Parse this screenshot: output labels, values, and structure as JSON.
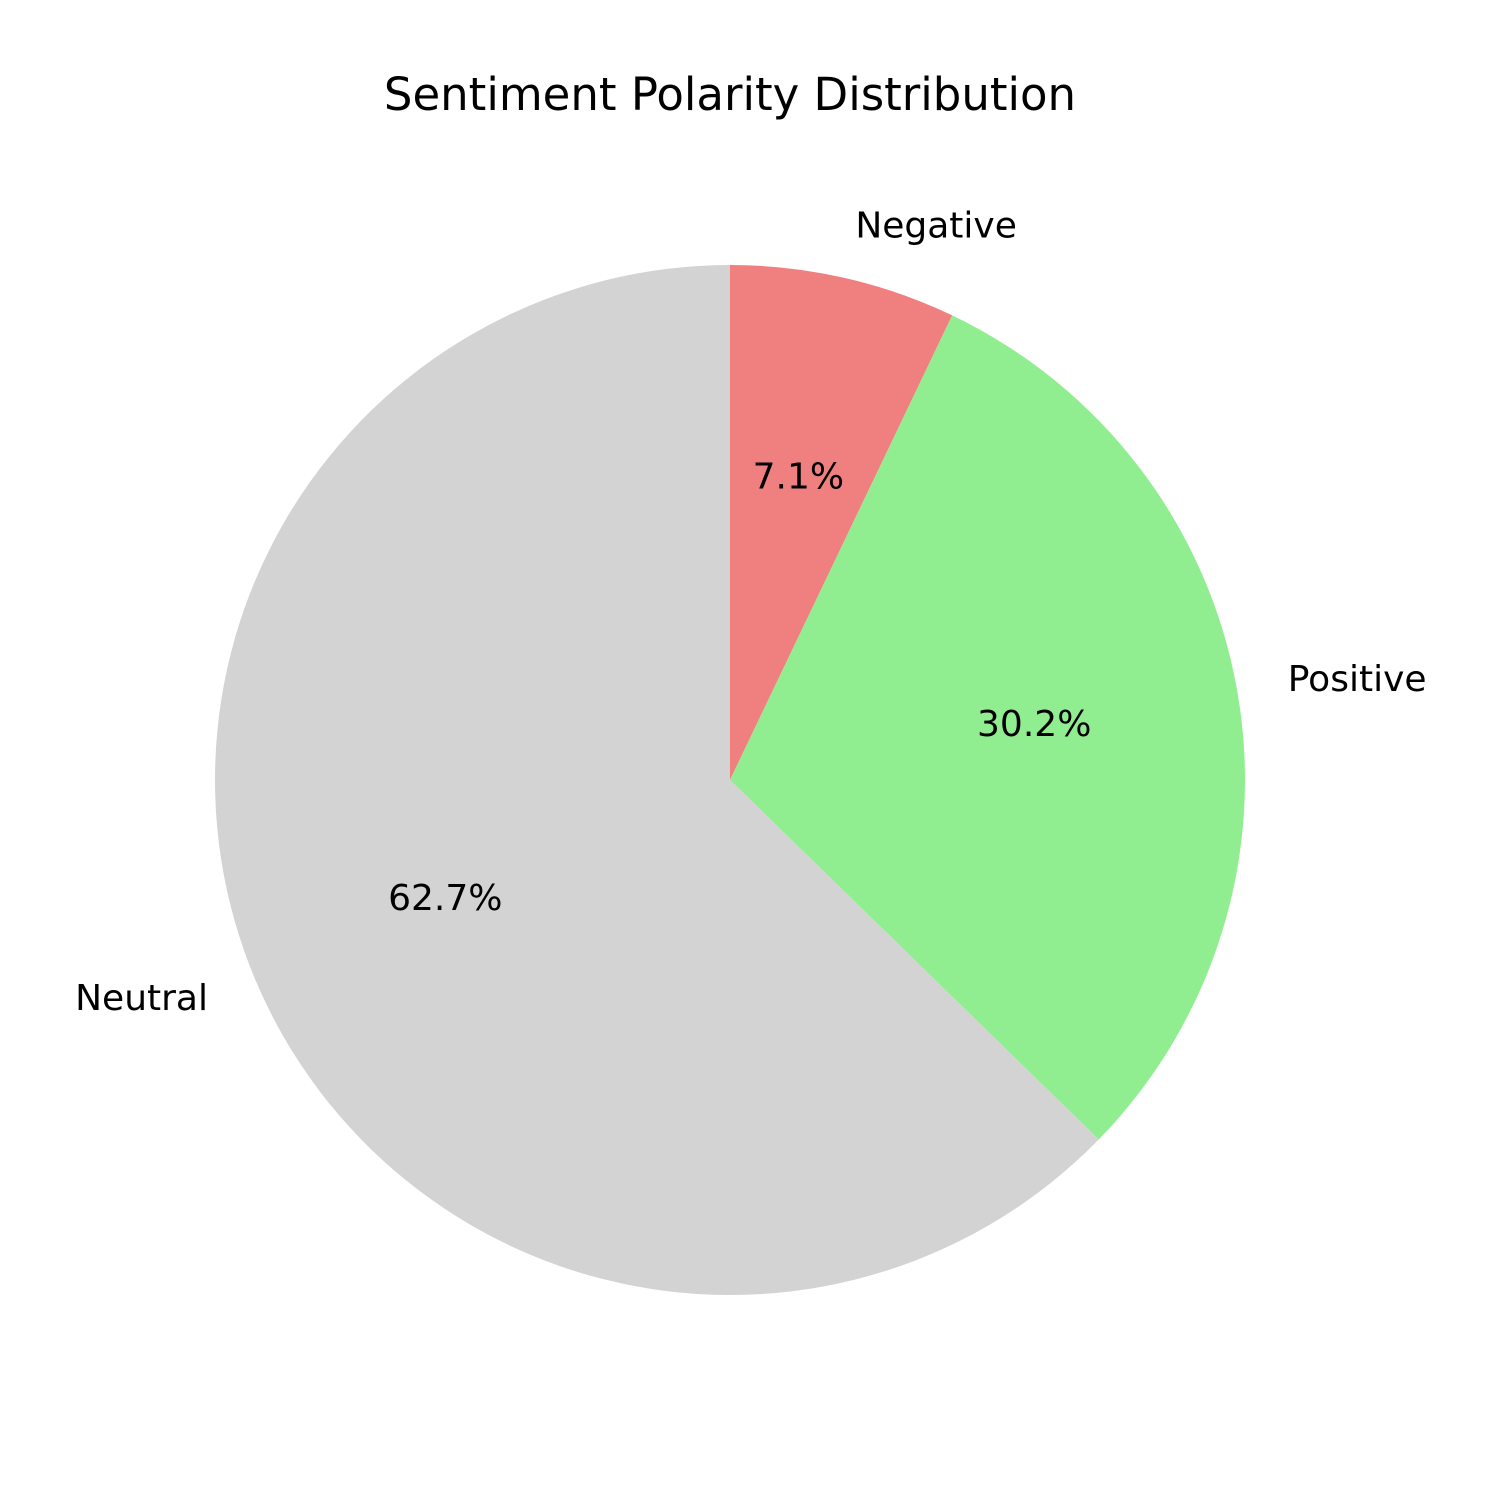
{
  "chart_data": {
    "type": "pie",
    "title": "Sentiment Polarity Distribution",
    "start_angle": 90,
    "direction": "clockwise",
    "slices": [
      {
        "label": "Negative",
        "value": 7.1,
        "pct_label": "7.1%",
        "color": "#f08080"
      },
      {
        "label": "Positive",
        "value": 30.2,
        "pct_label": "30.2%",
        "color": "#90ee90"
      },
      {
        "label": "Neutral",
        "value": 62.7,
        "pct_label": "62.7%",
        "color": "#d3d3d3"
      }
    ]
  }
}
